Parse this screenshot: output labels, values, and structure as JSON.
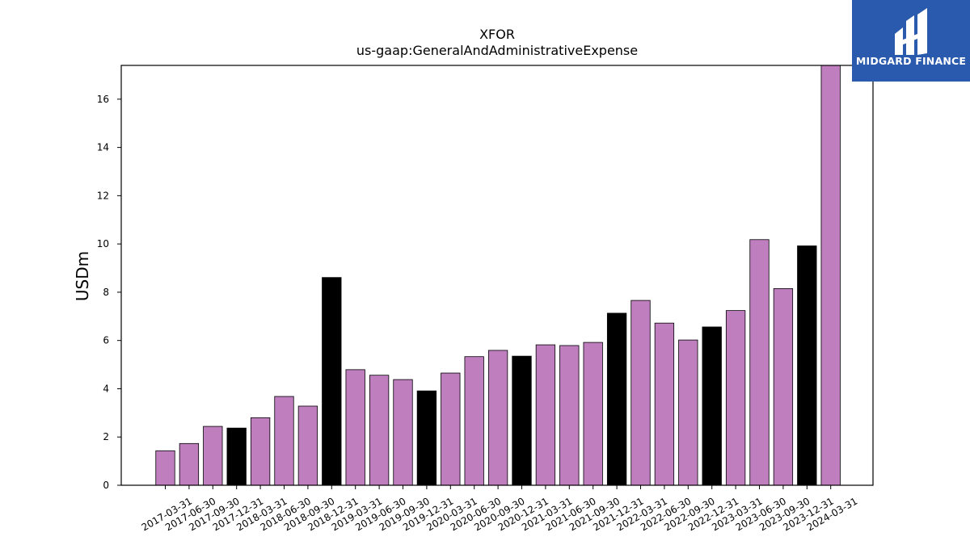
{
  "chart_data": {
    "type": "bar",
    "title": "XFOR",
    "subtitle": "us-gaap:GeneralAndAdministrativeExpense",
    "xlabel": "",
    "ylabel": "USDm",
    "ylim": [
      0,
      17.4
    ],
    "yticks": [
      0,
      2,
      4,
      6,
      8,
      10,
      12,
      14,
      16
    ],
    "grid": false,
    "categories": [
      "2017-03-31",
      "2017-06-30",
      "2017-09-30",
      "2017-12-31",
      "2018-03-31",
      "2018-06-30",
      "2018-09-30",
      "2018-12-31",
      "2019-03-31",
      "2019-06-30",
      "2019-09-30",
      "2019-12-31",
      "2020-03-31",
      "2020-06-30",
      "2020-09-30",
      "2020-12-31",
      "2021-03-31",
      "2021-06-30",
      "2021-09-30",
      "2021-12-31",
      "2022-03-31",
      "2022-06-30",
      "2022-09-30",
      "2022-12-31",
      "2023-03-31",
      "2023-06-30",
      "2023-09-30",
      "2023-12-31",
      "2024-03-31"
    ],
    "values": [
      1.43,
      1.73,
      2.44,
      2.37,
      2.8,
      3.68,
      3.28,
      8.61,
      4.79,
      4.56,
      4.38,
      3.91,
      4.65,
      5.33,
      5.59,
      5.35,
      5.82,
      5.79,
      5.92,
      7.13,
      7.66,
      6.72,
      6.02,
      6.56,
      7.24,
      10.18,
      8.15,
      9.92,
      17.4
    ],
    "colors": {
      "regular": "#bf7fbf",
      "fiscal_year_end": "#000000",
      "edge": "#000000"
    },
    "highlight_categories": [
      "2017-12-31",
      "2018-12-31",
      "2019-12-31",
      "2020-12-31",
      "2021-12-31",
      "2022-12-31",
      "2023-12-31"
    ]
  },
  "logo": {
    "name": "MIDGARD FINANCE",
    "background": "#2a5aad"
  }
}
